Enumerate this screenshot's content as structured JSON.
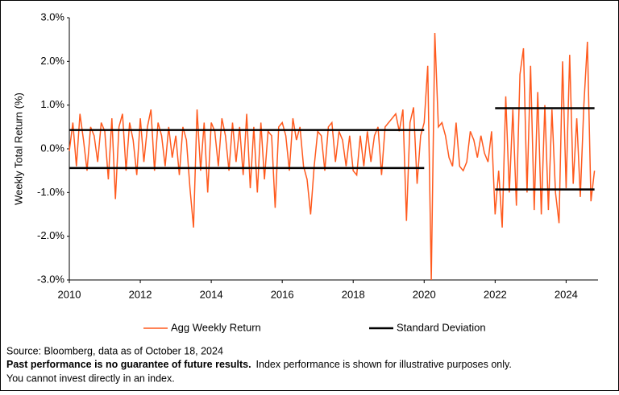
{
  "chart_data": {
    "type": "line",
    "y_label": "Weekly Total Return (%)",
    "xlim": [
      2010,
      2024.9
    ],
    "xticks": [
      2010,
      2012,
      2014,
      2016,
      2018,
      2020,
      2022,
      2024
    ],
    "ylim": [
      -3,
      3
    ],
    "yticks": [
      {
        "value": -3,
        "label": "-3.0%"
      },
      {
        "value": -2,
        "label": "-2.0%"
      },
      {
        "value": -1,
        "label": "-1.0%"
      },
      {
        "value": 0,
        "label": "0.0%"
      },
      {
        "value": 1,
        "label": "1.0%"
      },
      {
        "value": 2,
        "label": "2.0%"
      },
      {
        "value": 3,
        "label": "3.0%"
      }
    ],
    "series": [
      {
        "name": "Agg Weekly Return",
        "color": "#ff5a1e",
        "x": [
          2010.0,
          2010.1,
          2010.2,
          2010.3,
          2010.4,
          2010.5,
          2010.6,
          2010.7,
          2010.8,
          2010.9,
          2011.0,
          2011.1,
          2011.2,
          2011.3,
          2011.4,
          2011.5,
          2011.6,
          2011.7,
          2011.8,
          2011.9,
          2012.0,
          2012.1,
          2012.2,
          2012.3,
          2012.4,
          2012.5,
          2012.6,
          2012.7,
          2012.8,
          2012.9,
          2013.0,
          2013.1,
          2013.2,
          2013.3,
          2013.4,
          2013.5,
          2013.6,
          2013.7,
          2013.8,
          2013.9,
          2014.0,
          2014.1,
          2014.2,
          2014.3,
          2014.4,
          2014.5,
          2014.6,
          2014.7,
          2014.8,
          2014.9,
          2015.0,
          2015.1,
          2015.2,
          2015.3,
          2015.4,
          2015.5,
          2015.6,
          2015.7,
          2015.8,
          2015.9,
          2016.0,
          2016.1,
          2016.2,
          2016.3,
          2016.4,
          2016.5,
          2016.6,
          2016.7,
          2016.8,
          2016.9,
          2017.0,
          2017.1,
          2017.2,
          2017.3,
          2017.4,
          2017.5,
          2017.6,
          2017.7,
          2017.8,
          2017.9,
          2018.0,
          2018.1,
          2018.2,
          2018.3,
          2018.4,
          2018.5,
          2018.6,
          2018.7,
          2018.8,
          2018.9,
          2019.0,
          2019.1,
          2019.2,
          2019.3,
          2019.4,
          2019.5,
          2019.6,
          2019.7,
          2019.8,
          2019.9,
          2020.0,
          2020.1,
          2020.2,
          2020.3,
          2020.4,
          2020.5,
          2020.6,
          2020.7,
          2020.8,
          2020.9,
          2021.0,
          2021.1,
          2021.2,
          2021.3,
          2021.4,
          2021.5,
          2021.6,
          2021.7,
          2021.8,
          2021.9,
          2022.0,
          2022.1,
          2022.2,
          2022.3,
          2022.4,
          2022.5,
          2022.6,
          2022.7,
          2022.8,
          2022.9,
          2023.0,
          2023.1,
          2023.2,
          2023.3,
          2023.4,
          2023.5,
          2023.6,
          2023.7,
          2023.8,
          2023.9,
          2024.0,
          2024.1,
          2024.2,
          2024.3,
          2024.4,
          2024.5,
          2024.6,
          2024.7,
          2024.8
        ],
        "values": [
          -0.05,
          0.6,
          -0.4,
          0.8,
          0.2,
          -0.5,
          0.5,
          0.3,
          -0.3,
          0.6,
          0.4,
          -0.7,
          0.7,
          -1.15,
          0.5,
          0.8,
          -0.5,
          0.6,
          0.2,
          -0.6,
          0.7,
          -0.3,
          0.5,
          0.9,
          -0.5,
          0.6,
          0.3,
          -0.4,
          0.5,
          -0.2,
          0.3,
          -0.6,
          0.5,
          0.2,
          -0.9,
          -1.8,
          0.9,
          -0.5,
          0.6,
          -1.0,
          0.6,
          0.4,
          -0.4,
          0.7,
          0.3,
          -0.5,
          0.6,
          -0.3,
          0.5,
          -0.6,
          0.8,
          -0.9,
          0.5,
          -1.0,
          0.6,
          -0.7,
          0.4,
          0.3,
          -1.35,
          0.5,
          0.6,
          0.3,
          -0.5,
          0.7,
          0.2,
          0.5,
          -0.4,
          -0.7,
          -1.5,
          -0.4,
          0.4,
          0.3,
          -0.5,
          0.5,
          0.6,
          -0.3,
          0.4,
          0.2,
          -0.4,
          0.3,
          -0.5,
          -0.6,
          0.3,
          -0.4,
          0.4,
          -0.3,
          0.3,
          0.5,
          -0.6,
          0.5,
          0.6,
          0.7,
          0.8,
          0.4,
          0.9,
          -1.65,
          0.6,
          0.95,
          -0.8,
          0.3,
          0.6,
          1.9,
          -3.0,
          2.65,
          0.5,
          0.6,
          0.3,
          -0.2,
          -0.4,
          0.6,
          -0.4,
          -0.5,
          -0.3,
          0.4,
          0.2,
          -0.2,
          0.3,
          -0.1,
          -0.3,
          0.4,
          -1.5,
          -0.5,
          -1.8,
          1.2,
          -1.0,
          0.9,
          -1.3,
          1.7,
          2.3,
          -1.0,
          1.9,
          -1.4,
          1.3,
          -1.5,
          1.0,
          -1.4,
          0.9,
          -1.0,
          -1.7,
          2.0,
          -0.9,
          2.15,
          -0.8,
          0.7,
          -1.1,
          1.0,
          2.45,
          -1.2,
          -0.5
        ]
      },
      {
        "name": "Standard Deviation",
        "color": "#000000",
        "x": [
          2010,
          2020,
          2020,
          2010,
          2020,
          2020,
          2022,
          2024.8,
          2024.8,
          2022,
          2024.8
        ],
        "values": [
          0.43,
          0.43,
          null,
          -0.44,
          -0.44,
          null,
          0.93,
          0.93,
          null,
          -0.93,
          -0.93
        ]
      }
    ],
    "source": "Source: Bloomberg, data as of October 18, 2024",
    "disclaimer_bold": "Past performance is no guarantee of future results.",
    "disclaimer": "Index performance is shown for illustrative purposes only.",
    "disclaimer_2": "You cannot invest directly in an index."
  }
}
